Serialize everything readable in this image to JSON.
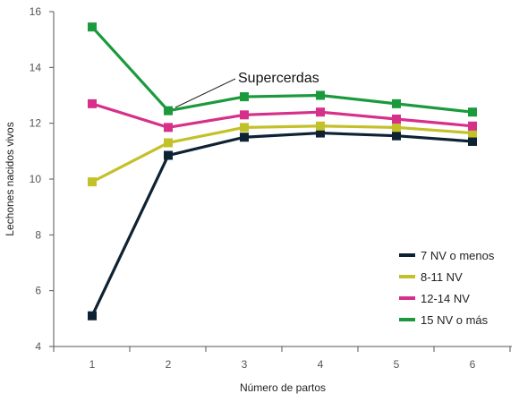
{
  "chart_data": {
    "type": "line",
    "xlabel": "Número de partos",
    "ylabel": "Lechones nacidos vivos",
    "x": [
      1,
      2,
      3,
      4,
      5,
      6
    ],
    "x_ticks": [
      "1",
      "2",
      "3",
      "4",
      "5",
      "6"
    ],
    "ylim": [
      4,
      16
    ],
    "y_ticks": [
      "4",
      "6",
      "8",
      "10",
      "12",
      "14",
      "16"
    ],
    "grid": false,
    "legend_position": "bottom-right",
    "annotation": {
      "text": "Supercerdas",
      "target_series": "15 NV o más",
      "target_x": 2
    },
    "series": [
      {
        "name": "7 NV o menos",
        "color": "#0d2233",
        "values": [
          5.1,
          10.85,
          11.5,
          11.65,
          11.55,
          11.35
        ]
      },
      {
        "name": "8-11 NV",
        "color": "#c3c12a",
        "values": [
          9.9,
          11.3,
          11.85,
          11.9,
          11.85,
          11.65
        ]
      },
      {
        "name": "12-14 NV",
        "color": "#d6308a",
        "values": [
          12.7,
          11.85,
          12.3,
          12.4,
          12.15,
          11.9
        ]
      },
      {
        "name": "15 NV o más",
        "color": "#1a9a3c",
        "values": [
          15.45,
          12.45,
          12.95,
          13.0,
          12.7,
          12.4
        ]
      }
    ]
  }
}
